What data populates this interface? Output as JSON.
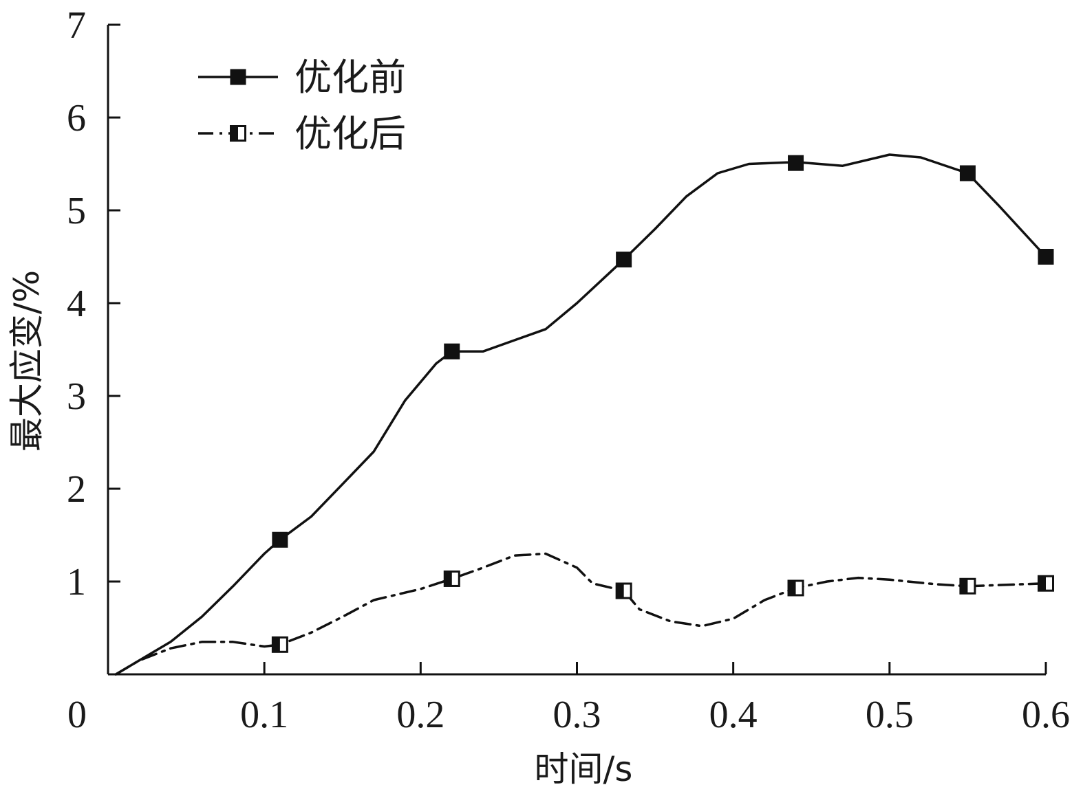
{
  "chart_data": {
    "type": "line",
    "xlabel": "时间/s",
    "ylabel": "最大应变/%",
    "xlim": [
      0,
      0.6
    ],
    "ylim": [
      0,
      7
    ],
    "x_ticks": [
      "0",
      "0.1",
      "0.2",
      "0.3",
      "0.4",
      "0.5",
      "0.6"
    ],
    "y_ticks": [
      "1",
      "2",
      "3",
      "4",
      "5",
      "6",
      "7"
    ],
    "grid": false,
    "legend_position": "top-left",
    "series": [
      {
        "name": "优化前",
        "line_style": "solid",
        "marker": "filled-square",
        "color": "#111111",
        "x": [
          0.005,
          0.02,
          0.04,
          0.06,
          0.08,
          0.1,
          0.11,
          0.13,
          0.15,
          0.17,
          0.19,
          0.21,
          0.22,
          0.24,
          0.26,
          0.28,
          0.3,
          0.33,
          0.35,
          0.37,
          0.39,
          0.41,
          0.44,
          0.47,
          0.5,
          0.52,
          0.55,
          0.57,
          0.6
        ],
        "y": [
          0.0,
          0.15,
          0.35,
          0.62,
          0.95,
          1.3,
          1.45,
          1.7,
          2.05,
          2.4,
          2.95,
          3.35,
          3.48,
          3.48,
          3.6,
          3.72,
          4.0,
          4.47,
          4.8,
          5.15,
          5.4,
          5.5,
          5.52,
          5.48,
          5.6,
          5.57,
          5.4,
          5.05,
          4.5
        ],
        "marker_x": [
          0.11,
          0.22,
          0.33,
          0.44,
          0.55,
          0.6
        ],
        "marker_y": [
          1.45,
          3.48,
          4.47,
          5.51,
          5.4,
          4.5
        ]
      },
      {
        "name": "优化后",
        "line_style": "dash-dot",
        "marker": "half-filled-square",
        "color": "#111111",
        "x": [
          0.005,
          0.02,
          0.04,
          0.06,
          0.08,
          0.1,
          0.11,
          0.13,
          0.15,
          0.17,
          0.19,
          0.2,
          0.22,
          0.24,
          0.26,
          0.28,
          0.3,
          0.31,
          0.33,
          0.34,
          0.36,
          0.38,
          0.4,
          0.42,
          0.44,
          0.46,
          0.48,
          0.5,
          0.53,
          0.55,
          0.6
        ],
        "y": [
          0.0,
          0.15,
          0.28,
          0.35,
          0.35,
          0.3,
          0.32,
          0.45,
          0.62,
          0.8,
          0.88,
          0.92,
          1.03,
          1.15,
          1.28,
          1.3,
          1.15,
          0.98,
          0.9,
          0.7,
          0.57,
          0.52,
          0.6,
          0.8,
          0.93,
          1.0,
          1.04,
          1.02,
          0.97,
          0.95,
          0.98
        ],
        "marker_x": [
          0.11,
          0.22,
          0.33,
          0.44,
          0.55,
          0.6
        ],
        "marker_y": [
          0.32,
          1.03,
          0.9,
          0.93,
          0.95,
          0.98
        ]
      }
    ]
  }
}
